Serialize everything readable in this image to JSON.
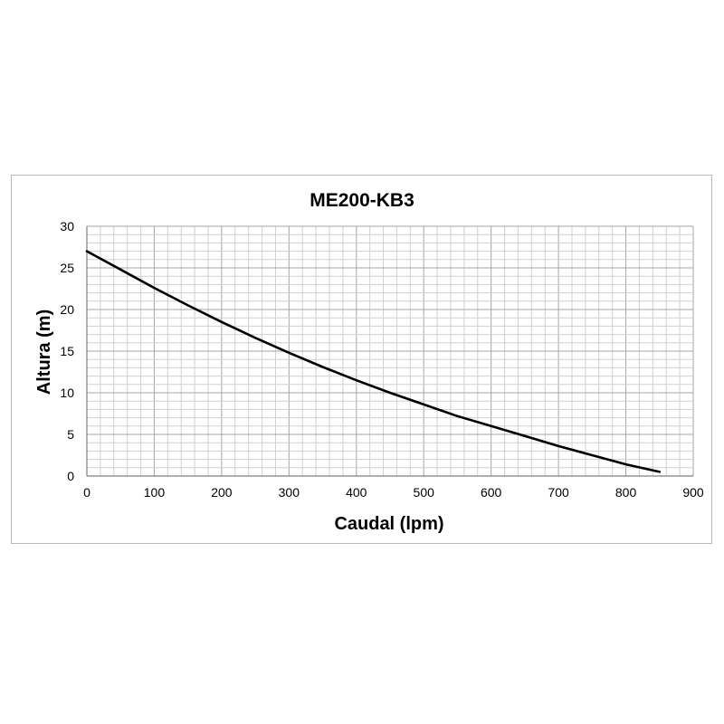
{
  "chart_data": {
    "type": "line",
    "title": "ME200-KB3",
    "xlabel": "Caudal (lpm)",
    "ylabel": "Altura (m)",
    "xlim": [
      0,
      900
    ],
    "ylim": [
      0,
      30
    ],
    "x_ticks": [
      "0",
      "100",
      "200",
      "300",
      "400",
      "500",
      "600",
      "700",
      "800",
      "900"
    ],
    "y_ticks": [
      "0",
      "5",
      "10",
      "15",
      "20",
      "25",
      "30"
    ],
    "grid": true,
    "series": [
      {
        "color": "#000000",
        "x": [
          0,
          50,
          100,
          150,
          200,
          250,
          300,
          350,
          400,
          450,
          500,
          550,
          600,
          650,
          700,
          750,
          800,
          850
        ],
        "y": [
          27.0,
          24.8,
          22.6,
          20.5,
          18.5,
          16.6,
          14.8,
          13.1,
          11.5,
          10.0,
          8.6,
          7.2,
          6.0,
          4.8,
          3.6,
          2.5,
          1.4,
          0.5
        ]
      }
    ]
  }
}
